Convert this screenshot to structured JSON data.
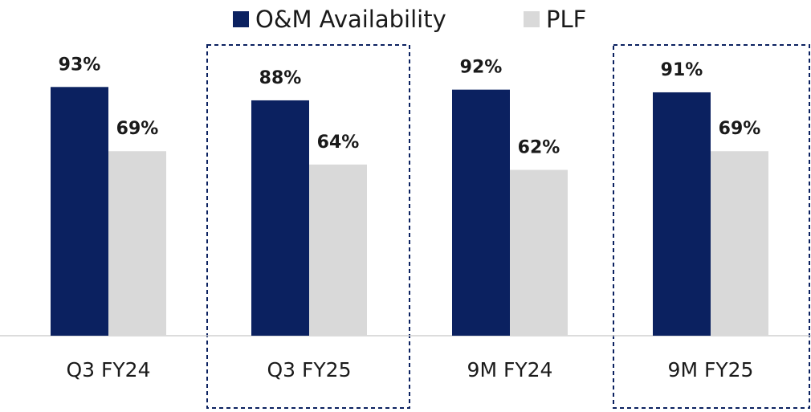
{
  "chart_data": {
    "type": "bar",
    "categories": [
      "Q3 FY24",
      "Q3 FY25",
      "9M FY24",
      "9M FY25"
    ],
    "series": [
      {
        "name": "O&M Availability",
        "color": "#0b2160",
        "values": [
          93,
          88,
          92,
          91
        ],
        "value_labels": [
          "93%",
          "88%",
          "92%",
          "91%"
        ]
      },
      {
        "name": "PLF",
        "color": "#d9d9d9",
        "values": [
          69,
          64,
          62,
          69
        ],
        "value_labels": [
          "69%",
          "64%",
          "62%",
          "69%"
        ]
      }
    ],
    "ylim": [
      0,
      100
    ],
    "legend": "top"
  }
}
